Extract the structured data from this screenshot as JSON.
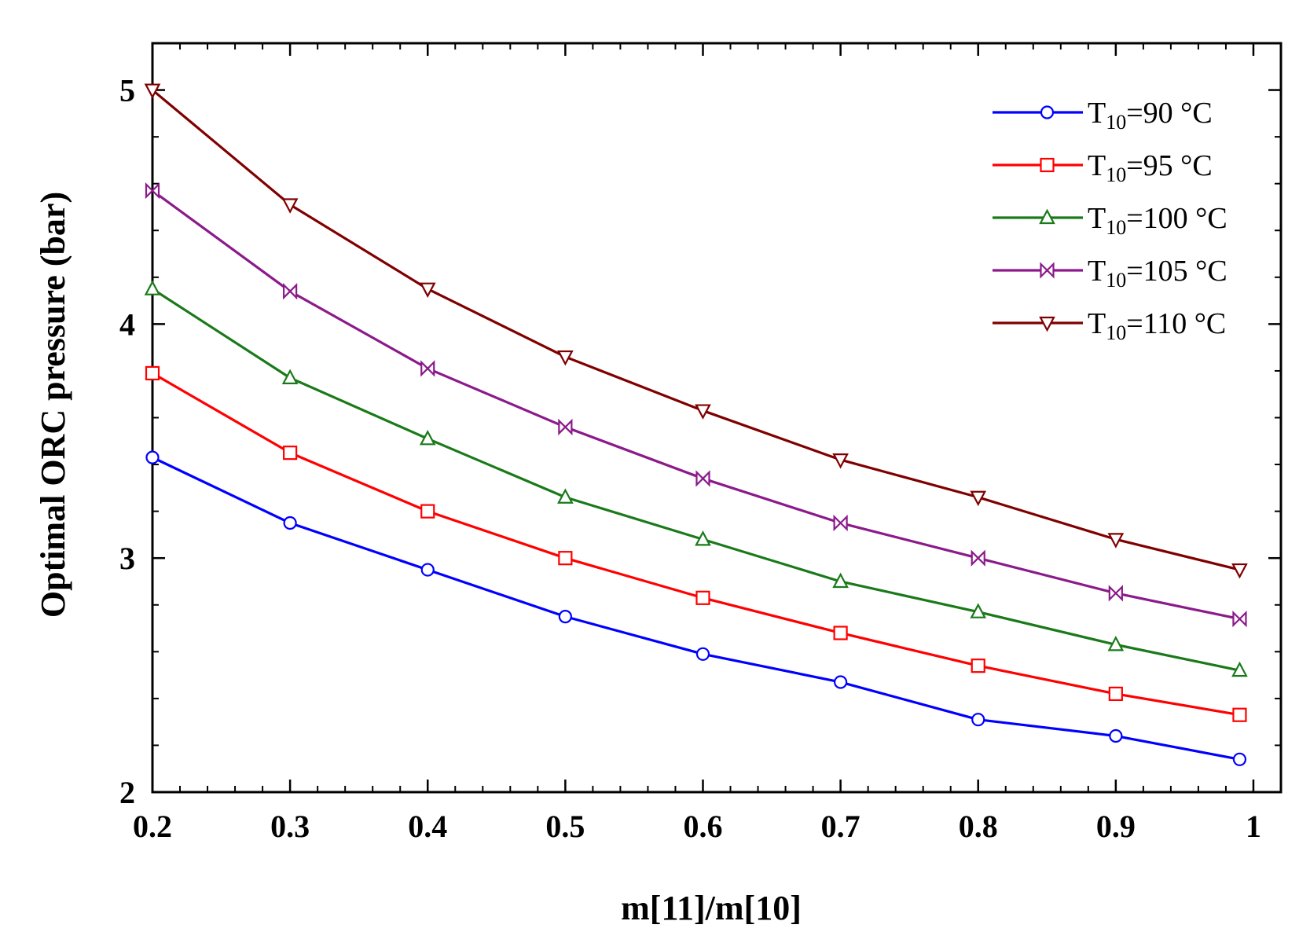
{
  "chart_data": {
    "type": "line",
    "title": "",
    "xlabel": "m[11]/m[10]",
    "ylabel": "Optimal ORC pressure  (bar)",
    "xlim": [
      0.2,
      1.02
    ],
    "ylim": [
      2,
      5.2
    ],
    "x_ticks": [
      0.2,
      0.3,
      0.4,
      0.5,
      0.6,
      0.7,
      0.8,
      0.9,
      1
    ],
    "x_tick_labels": [
      "0.2",
      "0.3",
      "0.4",
      "0.5",
      "0.6",
      "0.7",
      "0.8",
      "0.9",
      "1"
    ],
    "y_ticks": [
      2,
      3,
      4,
      5
    ],
    "y_tick_labels": [
      "2",
      "3",
      "4",
      "5"
    ],
    "x": [
      0.2,
      0.3,
      0.4,
      0.5,
      0.6,
      0.7,
      0.8,
      0.9,
      0.99
    ],
    "legend_position": "top-right",
    "grid": false,
    "series": [
      {
        "name": "T10=90 °C",
        "label_main": "T",
        "label_sub": "10",
        "label_rest": "=90 °C",
        "color": "#0000ff",
        "marker": "circle",
        "values": [
          3.43,
          3.15,
          2.95,
          2.75,
          2.59,
          2.47,
          2.31,
          2.24,
          2.14
        ]
      },
      {
        "name": "T10=95 °C",
        "label_main": "T",
        "label_sub": "10",
        "label_rest": "=95 °C",
        "color": "#ff0000",
        "marker": "square",
        "values": [
          3.79,
          3.45,
          3.2,
          3.0,
          2.83,
          2.68,
          2.54,
          2.42,
          2.33
        ]
      },
      {
        "name": "T10=100 °C",
        "label_main": "T",
        "label_sub": "10",
        "label_rest": "=100 °C",
        "color": "#1a7a1a",
        "marker": "triangle-up",
        "values": [
          4.15,
          3.77,
          3.51,
          3.26,
          3.08,
          2.9,
          2.77,
          2.63,
          2.52
        ]
      },
      {
        "name": "T10=105 °C",
        "label_main": "T",
        "label_sub": "10",
        "label_rest": "=105 °C",
        "color": "#8b1a8b",
        "marker": "bowtie",
        "values": [
          4.57,
          4.14,
          3.81,
          3.56,
          3.34,
          3.15,
          3.0,
          2.85,
          2.74
        ]
      },
      {
        "name": "T10=110 °C",
        "label_main": "T",
        "label_sub": "10",
        "label_rest": "=110 °C",
        "color": "#800000",
        "marker": "triangle-down",
        "values": [
          5.0,
          4.51,
          4.15,
          3.86,
          3.63,
          3.42,
          3.26,
          3.08,
          2.95
        ]
      }
    ]
  }
}
